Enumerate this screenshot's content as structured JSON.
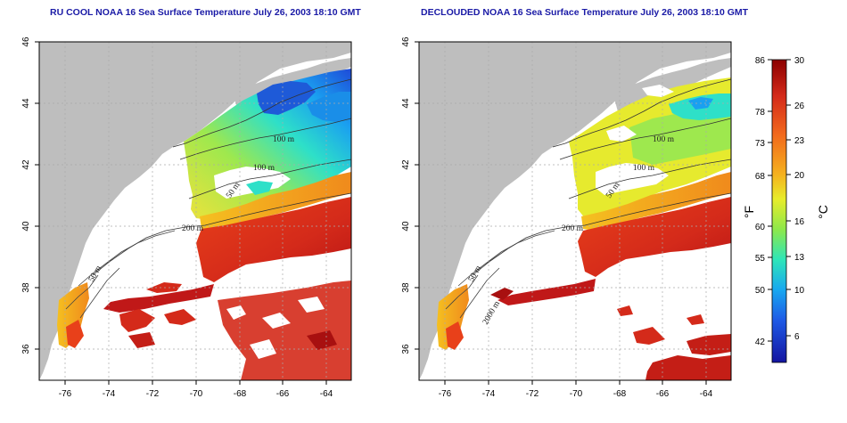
{
  "titles": {
    "left": "RU COOL NOAA 16 Sea Surface Temperature July 26, 2003 18:10 GMT",
    "right": "DECLOUDED NOAA 16 Sea Surface Temperature July 26, 2003 18:10 GMT"
  },
  "map": {
    "lon_ticks": [
      "-76",
      "-74",
      "-72",
      "-70",
      "-68",
      "-66",
      "-64"
    ],
    "lat_ticks": [
      "36",
      "38",
      "40",
      "42",
      "44",
      "46"
    ],
    "contour_labels": [
      "100 m",
      "100 m",
      "50 m",
      "200 m",
      "50 m"
    ],
    "contour_labels_right": [
      "100 m",
      "100 m",
      "50 m",
      "200 m",
      "50 m",
      "2000 m"
    ]
  },
  "colorbar": {
    "fahrenheit_ticks": [
      "86",
      "78",
      "73",
      "68",
      "60",
      "55",
      "50",
      "42"
    ],
    "celsius_ticks": [
      "30",
      "26",
      "23",
      "20",
      "16",
      "13",
      "10",
      "6"
    ],
    "fahrenheit_unit": "°F",
    "celsius_unit": "°C",
    "colors": [
      "#8b0000",
      "#d42a1a",
      "#f26a1c",
      "#f5b21e",
      "#e8ec2a",
      "#8ee84a",
      "#2ee6b8",
      "#18a8f0",
      "#1e5ae6",
      "#1414a0"
    ]
  }
}
